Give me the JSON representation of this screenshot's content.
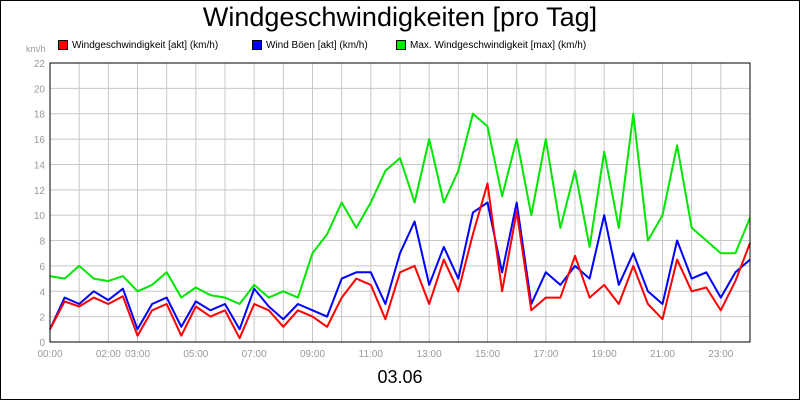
{
  "chart_data": {
    "type": "line",
    "title": "Windgeschwindigkeiten [pro Tag]",
    "unit": "km/h",
    "date_label": "03.06",
    "ylim": [
      0,
      22
    ],
    "yticks": [
      0,
      2,
      4,
      6,
      8,
      10,
      12,
      14,
      16,
      18,
      20,
      22
    ],
    "xlim": [
      0,
      24
    ],
    "xticks": [
      {
        "h": 0,
        "label": "00:00"
      },
      {
        "h": 2,
        "label": "02:00"
      },
      {
        "h": 3,
        "label": "03:00"
      },
      {
        "h": 5,
        "label": "05:00"
      },
      {
        "h": 7,
        "label": "07:00"
      },
      {
        "h": 9,
        "label": "09:00"
      },
      {
        "h": 11,
        "label": "11:00"
      },
      {
        "h": 13,
        "label": "13:00"
      },
      {
        "h": 15,
        "label": "15:00"
      },
      {
        "h": 17,
        "label": "17:00"
      },
      {
        "h": 19,
        "label": "19:00"
      },
      {
        "h": 21,
        "label": "21:00"
      },
      {
        "h": 23,
        "label": "23:00"
      }
    ],
    "grid": true,
    "legend_placement": "top",
    "series": [
      {
        "name": "Windgeschwindigkeit [akt] (km/h)",
        "color": "#ff0000",
        "x": [
          0,
          0.5,
          1,
          1.5,
          2,
          2.5,
          3,
          3.5,
          4,
          4.5,
          5,
          5.5,
          6,
          6.5,
          7,
          7.5,
          8,
          8.5,
          9,
          9.5,
          10,
          10.5,
          11,
          11.5,
          12,
          12.5,
          13,
          13.5,
          14,
          14.5,
          15,
          15.5,
          16,
          16.5,
          17,
          17.5,
          18,
          18.5,
          19,
          19.5,
          20,
          20.5,
          21,
          21.5,
          22,
          22.5,
          23,
          23.5,
          24
        ],
        "values": [
          1,
          3.2,
          2.8,
          3.5,
          3,
          3.6,
          0.5,
          2.5,
          3,
          0.5,
          2.8,
          2,
          2.5,
          0.3,
          3,
          2.5,
          1.2,
          2.5,
          2,
          1.2,
          3.5,
          5,
          4.5,
          1.8,
          5.5,
          6,
          3,
          6.5,
          4,
          8.5,
          12.5,
          4,
          10.3,
          2.5,
          3.5,
          3.5,
          6.8,
          3.5,
          4.5,
          3,
          6,
          3,
          1.8,
          6.5,
          4,
          4.3,
          2.5,
          4.8,
          7.8
        ]
      },
      {
        "name": "Wind Böen [akt] (km/h)",
        "color": "#0000ff",
        "x": [
          0,
          0.5,
          1,
          1.5,
          2,
          2.5,
          3,
          3.5,
          4,
          4.5,
          5,
          5.5,
          6,
          6.5,
          7,
          7.5,
          8,
          8.5,
          9,
          9.5,
          10,
          10.5,
          11,
          11.5,
          12,
          12.5,
          13,
          13.5,
          14,
          14.5,
          15,
          15.5,
          16,
          16.5,
          17,
          17.5,
          18,
          18.5,
          19,
          19.5,
          20,
          20.5,
          21,
          21.5,
          22,
          22.5,
          23,
          23.5,
          24
        ],
        "values": [
          1,
          3.5,
          3,
          4,
          3.3,
          4.2,
          1,
          3,
          3.5,
          1.2,
          3.2,
          2.5,
          3,
          1,
          4.2,
          2.8,
          1.8,
          3,
          2.5,
          2,
          5,
          5.5,
          5.5,
          3,
          7,
          9.5,
          4.5,
          7.5,
          5,
          10.2,
          11,
          5.5,
          11,
          3,
          5.5,
          4.5,
          6,
          5,
          10,
          4.5,
          7,
          4,
          3,
          8,
          5,
          5.5,
          3.5,
          5.5,
          6.5
        ]
      },
      {
        "name": "Max. Windgeschwindigkeit [max] (km/h)",
        "color": "#00e600",
        "x": [
          0,
          0.5,
          1,
          1.5,
          2,
          2.5,
          3,
          3.5,
          4,
          4.5,
          5,
          5.5,
          6,
          6.5,
          7,
          7.5,
          8,
          8.5,
          9,
          9.5,
          10,
          10.5,
          11,
          11.5,
          12,
          12.5,
          13,
          13.5,
          14,
          14.5,
          15,
          15.5,
          16,
          16.5,
          17,
          17.5,
          18,
          18.5,
          19,
          19.5,
          20,
          20.5,
          21,
          21.5,
          22,
          22.5,
          23,
          23.5,
          24
        ],
        "values": [
          5.2,
          5,
          6,
          5,
          4.8,
          5.2,
          4,
          4.5,
          5.5,
          3.5,
          4.3,
          3.7,
          3.5,
          3,
          4.5,
          3.5,
          4,
          3.5,
          7,
          8.5,
          11,
          9,
          11,
          13.5,
          14.5,
          11,
          16,
          11,
          13.5,
          18,
          17,
          11.5,
          16,
          10,
          16,
          9,
          13.5,
          7.5,
          15,
          9,
          18,
          8,
          10,
          15.5,
          9,
          8,
          7,
          7,
          9.8
        ]
      }
    ]
  }
}
